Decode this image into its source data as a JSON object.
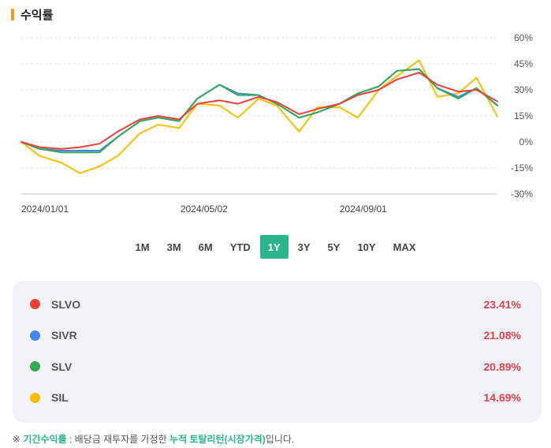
{
  "header": {
    "title": "수익률"
  },
  "colors": {
    "accent": "#2bb58a",
    "header_bar": "#f59a23",
    "positive": "#e8414d"
  },
  "periods": {
    "items": [
      "1M",
      "3M",
      "6M",
      "YTD",
      "1Y",
      "3Y",
      "5Y",
      "10Y",
      "MAX"
    ],
    "active": "1Y"
  },
  "chart_data": {
    "type": "line",
    "title": "",
    "xlabel": "",
    "ylabel": "",
    "ylim": [
      -30,
      60
    ],
    "y_ticks": [
      "60%",
      "45%",
      "30%",
      "15%",
      "0%",
      "-15%",
      "-30%"
    ],
    "x_ticks": [
      "2024/01/01",
      "2024/05/02",
      "2024/09/01"
    ],
    "grid": true,
    "x": [
      "2024/01/01",
      "2024/01/15",
      "2024/02/01",
      "2024/02/15",
      "2024/03/01",
      "2024/03/15",
      "2024/04/01",
      "2024/04/15",
      "2024/05/01",
      "2024/05/15",
      "2024/06/01",
      "2024/06/15",
      "2024/07/01",
      "2024/07/15",
      "2024/08/01",
      "2024/08/15",
      "2024/09/01",
      "2024/09/15",
      "2024/10/01",
      "2024/10/15",
      "2024/11/01",
      "2024/11/15",
      "2024/12/01",
      "2024/12/15",
      "2024/12/31"
    ],
    "series": [
      {
        "name": "SLVO",
        "color": "#e8413b",
        "values": [
          0,
          -3,
          -4,
          -3,
          -1,
          6,
          13,
          15,
          13,
          22,
          24,
          22,
          26,
          23,
          16,
          19,
          22,
          27,
          30,
          36,
          40,
          33,
          29,
          30,
          23.41
        ]
      },
      {
        "name": "SIVR",
        "color": "#4285f4",
        "values": [
          0,
          -4,
          -5,
          -5,
          -5,
          3,
          12,
          14,
          12,
          25,
          33,
          28,
          27,
          22,
          14,
          17,
          22,
          28,
          32,
          41,
          42,
          31,
          26,
          31,
          21.08
        ]
      },
      {
        "name": "SLV",
        "color": "#34a853",
        "values": [
          0,
          -4,
          -6,
          -6,
          -6,
          3,
          12,
          14,
          12,
          25,
          33,
          27,
          27,
          22,
          14,
          17,
          22,
          28,
          32,
          41,
          42,
          31,
          25,
          31,
          20.89
        ]
      },
      {
        "name": "SIL",
        "color": "#fbbc04",
        "values": [
          0,
          -8,
          -12,
          -18,
          -14,
          -8,
          5,
          10,
          8,
          22,
          21,
          14,
          25,
          21,
          6,
          20,
          20,
          14,
          30,
          38,
          47,
          26,
          28,
          37,
          14.69
        ]
      }
    ]
  },
  "legend": [
    {
      "name": "SLVO",
      "value": "23.41%",
      "color": "#e8413b"
    },
    {
      "name": "SIVR",
      "value": "21.08%",
      "color": "#4285f4"
    },
    {
      "name": "SLV",
      "value": "20.89%",
      "color": "#34a853"
    },
    {
      "name": "SIL",
      "value": "14.69%",
      "color": "#fbbc04"
    }
  ],
  "footnote": {
    "mark": "※",
    "term": "기간수익률",
    "middle": ": 배당금 재투자를 가정한",
    "emphasis": "누적 토탈리턴(시장가격)",
    "tail": "입니다."
  }
}
